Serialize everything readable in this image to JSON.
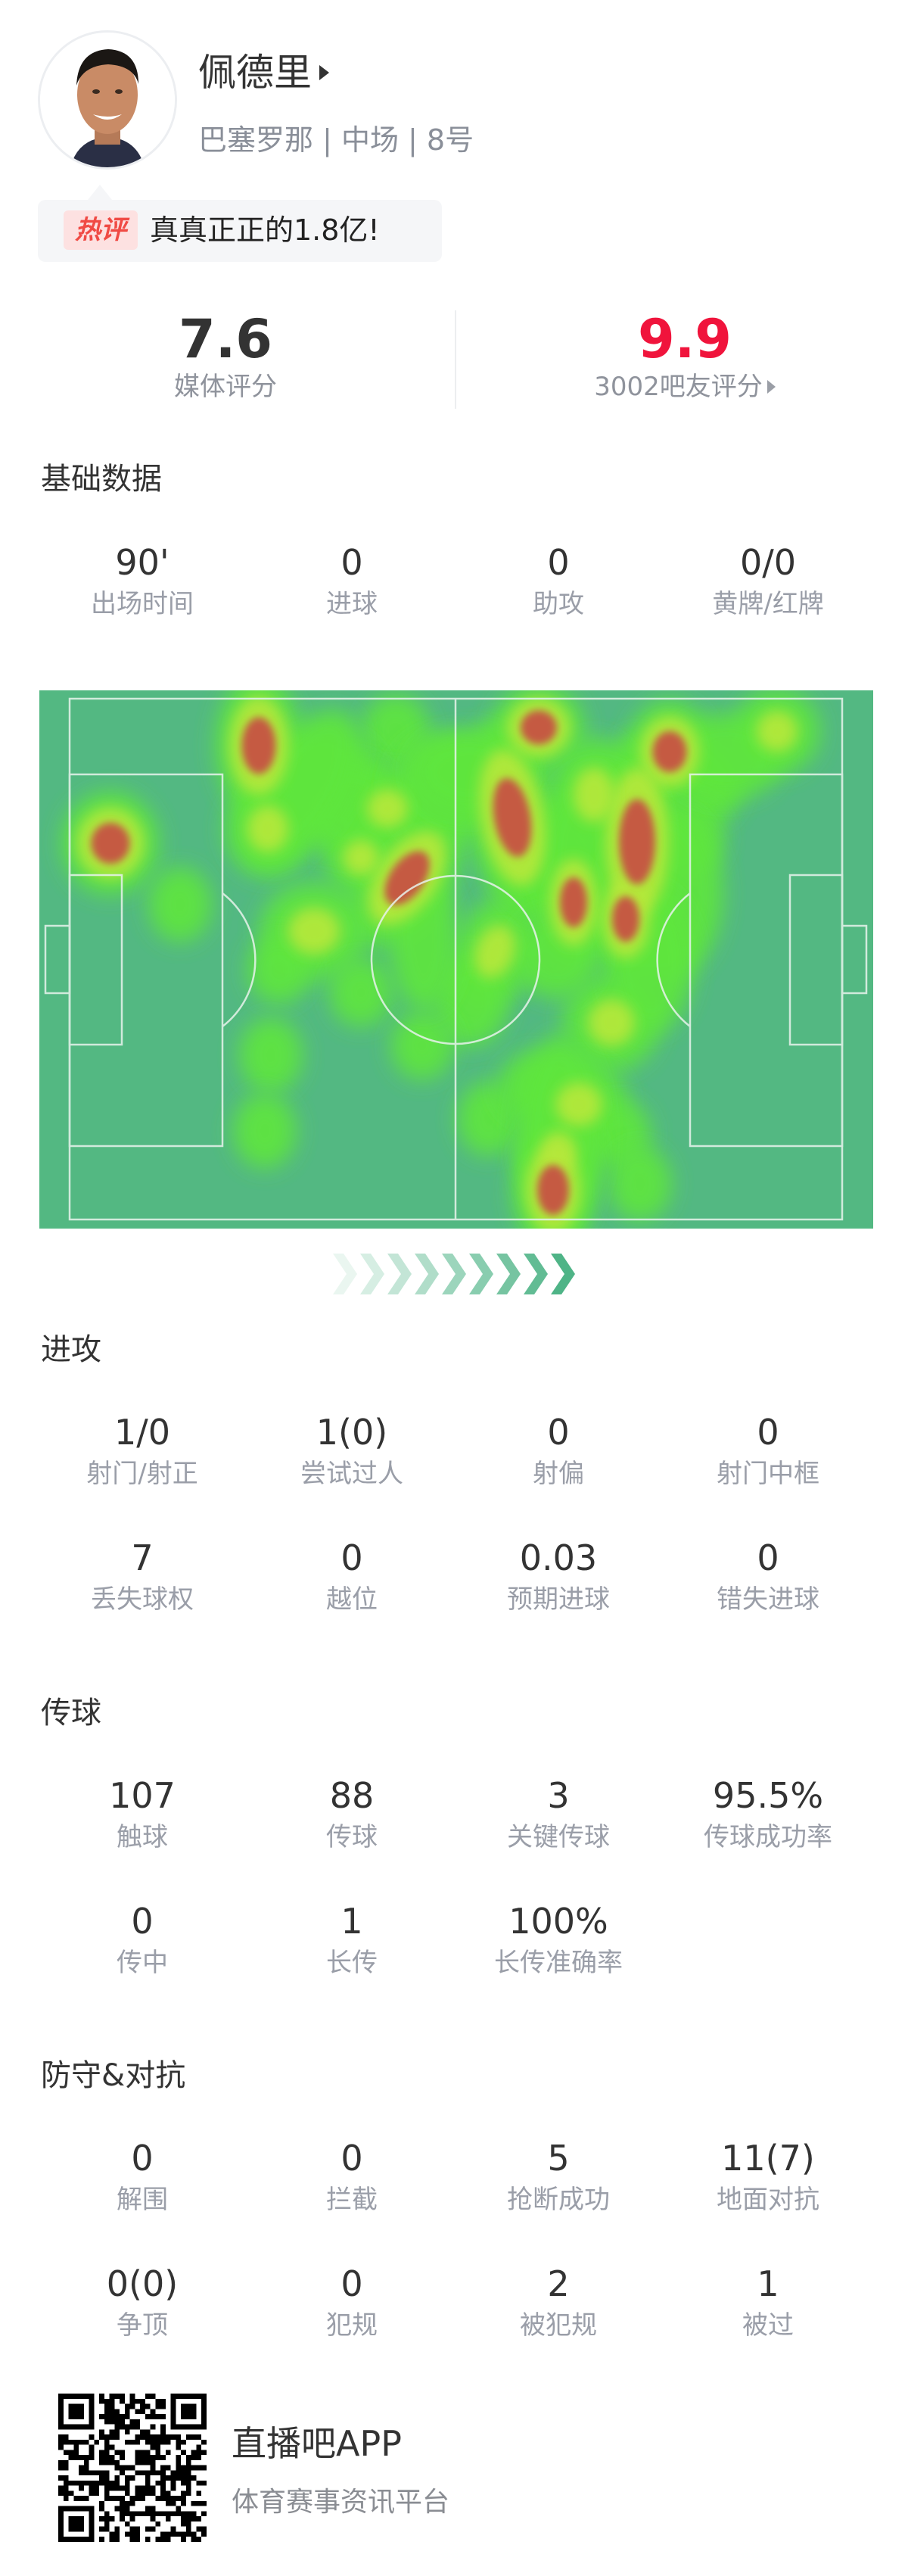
{
  "player": {
    "name": "佩德里",
    "subtitle": "巴塞罗那 | 中场 | 8号",
    "hot_comment_tag": "热评",
    "hot_comment": "真真正正的1.8亿!"
  },
  "ratings": {
    "media_value": "7.6",
    "media_label": "媒体评分",
    "fan_value": "9.9",
    "fan_label": "3002吧友评分",
    "fan_color": "#f0143c"
  },
  "sections": [
    {
      "title": "基础数据",
      "rows": [
        [
          {
            "value": "90'",
            "label": "出场时间"
          },
          {
            "value": "0",
            "label": "进球"
          },
          {
            "value": "0",
            "label": "助攻"
          },
          {
            "value": "0/0",
            "label": "黄牌/红牌"
          }
        ]
      ]
    },
    {
      "title": "进攻",
      "rows": [
        [
          {
            "value": "1/0",
            "label": "射门/射正"
          },
          {
            "value": "1(0)",
            "label": "尝试过人"
          },
          {
            "value": "0",
            "label": "射偏"
          },
          {
            "value": "0",
            "label": "射门中框"
          }
        ],
        [
          {
            "value": "7",
            "label": "丢失球权"
          },
          {
            "value": "0",
            "label": "越位"
          },
          {
            "value": "0.03",
            "label": "预期进球"
          },
          {
            "value": "0",
            "label": "错失进球"
          }
        ]
      ]
    },
    {
      "title": "传球",
      "rows": [
        [
          {
            "value": "107",
            "label": "触球"
          },
          {
            "value": "88",
            "label": "传球"
          },
          {
            "value": "3",
            "label": "关键传球"
          },
          {
            "value": "95.5%",
            "label": "传球成功率"
          }
        ],
        [
          {
            "value": "0",
            "label": "传中"
          },
          {
            "value": "1",
            "label": "长传"
          },
          {
            "value": "100%",
            "label": "长传准确率"
          }
        ]
      ]
    },
    {
      "title": "防守&对抗",
      "rows": [
        [
          {
            "value": "0",
            "label": "解围"
          },
          {
            "value": "0",
            "label": "拦截"
          },
          {
            "value": "5",
            "label": "抢断成功"
          },
          {
            "value": "11(7)",
            "label": "地面对抗"
          }
        ],
        [
          {
            "value": "0(0)",
            "label": "争顶"
          },
          {
            "value": "0",
            "label": "犯规"
          },
          {
            "value": "2",
            "label": "被犯规"
          },
          {
            "value": "1",
            "label": "被过"
          }
        ]
      ]
    }
  ],
  "heatmap": {
    "pitch_color": "#53b882",
    "line_color": "#e8f3ec",
    "attack_direction": "right"
  },
  "footer": {
    "app_name": "直播吧APP",
    "app_tagline": "体育赛事资讯平台",
    "qr_icon": "qr-code-icon"
  }
}
